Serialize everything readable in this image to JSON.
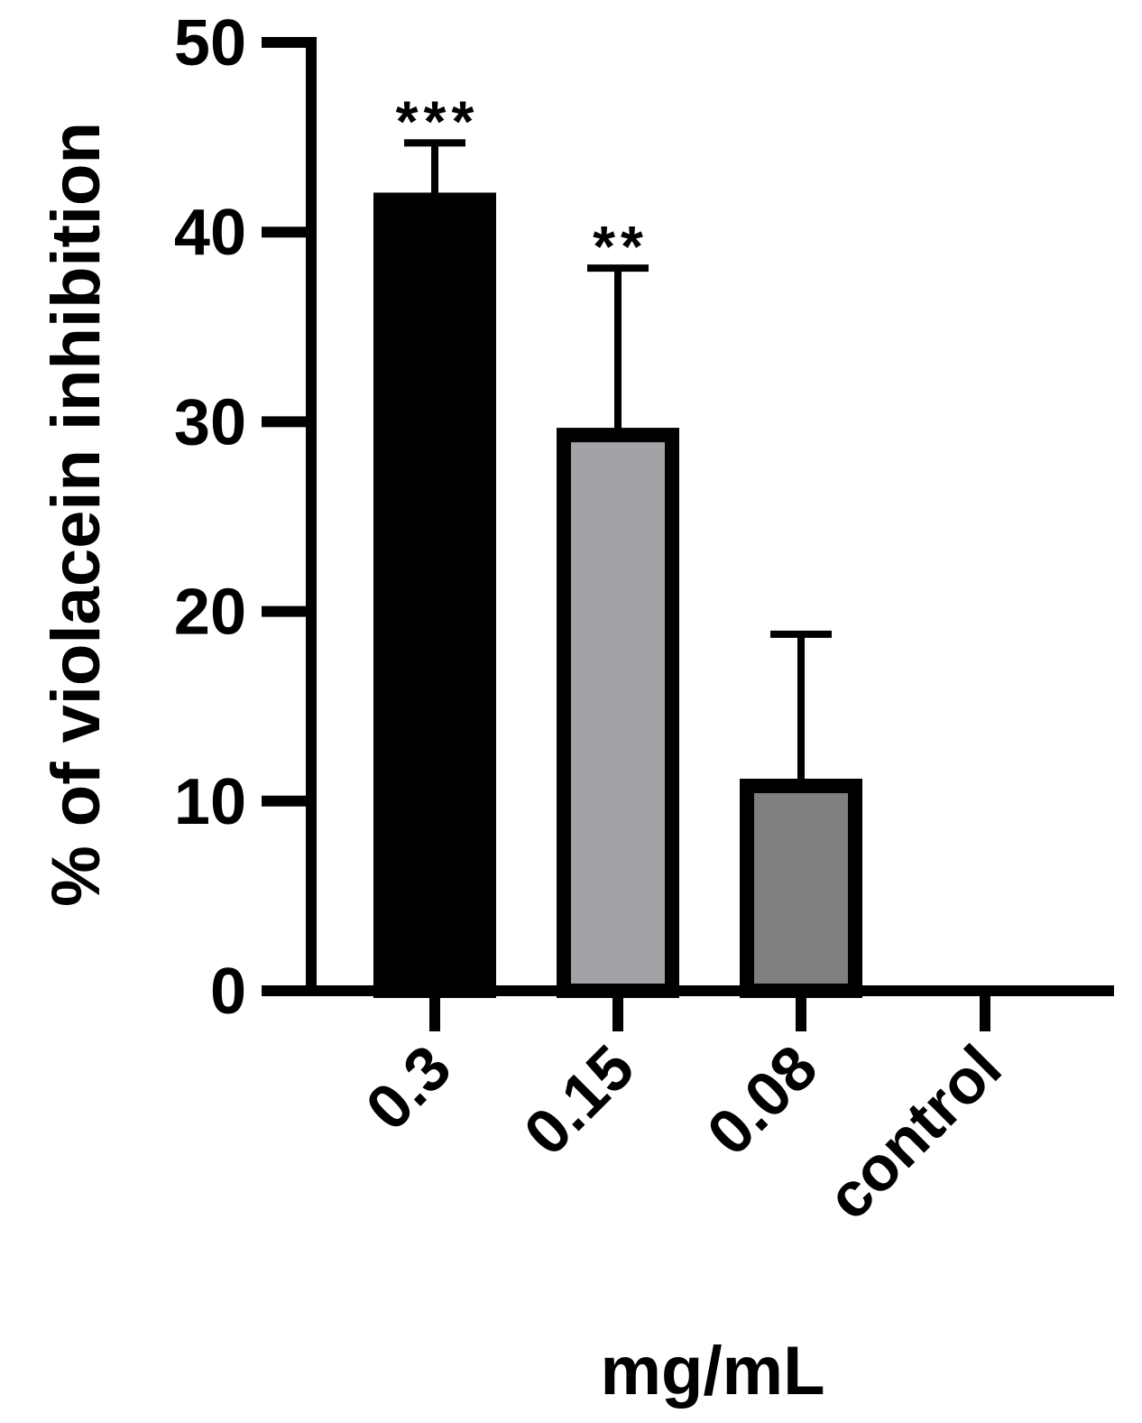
{
  "chart_data": {
    "type": "bar",
    "title": "",
    "xlabel": "mg/mL",
    "ylabel": "% of violacein inhibition",
    "categories": [
      "0.3",
      "0.15",
      "0.08",
      "control"
    ],
    "values": [
      41.7,
      29.3,
      10.8,
      0
    ],
    "errors": [
      3.0,
      8.8,
      8.0,
      0
    ],
    "significance": [
      "***",
      "**",
      "",
      ""
    ],
    "colors": [
      "#000000",
      "#a3a3a7",
      "#7f7f7f",
      "#ffffff"
    ],
    "ylim": [
      0,
      50
    ],
    "yticks": [
      "0",
      "10",
      "20",
      "30",
      "40",
      "50"
    ],
    "grid": false,
    "legend": "none"
  }
}
